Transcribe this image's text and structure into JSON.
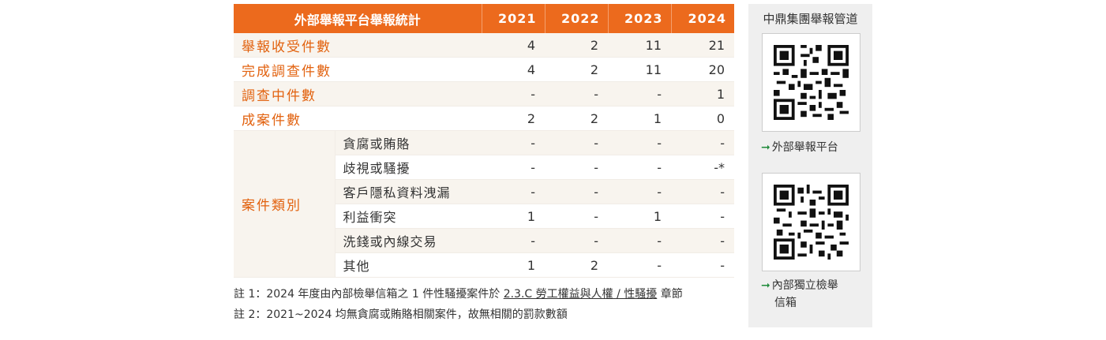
{
  "table": {
    "header_title": "外部舉報平台舉報統計",
    "years": [
      "2021",
      "2022",
      "2023",
      "2024"
    ],
    "rows": [
      {
        "label": "舉報收受件數",
        "values": [
          "4",
          "2",
          "11",
          "21"
        ]
      },
      {
        "label": "完成調查件數",
        "values": [
          "4",
          "2",
          "11",
          "20"
        ]
      },
      {
        "label": "調查中件數",
        "values": [
          "-",
          "-",
          "-",
          "1"
        ]
      },
      {
        "label": "成案件數",
        "values": [
          "2",
          "2",
          "1",
          "0"
        ]
      }
    ],
    "category_label": "案件類別",
    "sub_rows": [
      {
        "label": "貪腐或賄賂",
        "values": [
          "-",
          "-",
          "-",
          "-"
        ]
      },
      {
        "label": "歧視或騷擾",
        "values": [
          "-",
          "-",
          "-",
          "-*"
        ]
      },
      {
        "label": "客戶隱私資料洩漏",
        "values": [
          "-",
          "-",
          "-",
          "-"
        ]
      },
      {
        "label": "利益衝突",
        "values": [
          "1",
          "-",
          "1",
          "-"
        ]
      },
      {
        "label": "洗錢或內線交易",
        "values": [
          "-",
          "-",
          "-",
          "-"
        ]
      },
      {
        "label": "其他",
        "values": [
          "1",
          "2",
          "-",
          "-"
        ]
      }
    ]
  },
  "notes": {
    "note1_prefix": "註 1：2024 年度由內部檢舉信箱之 1 件性騷擾案件於 ",
    "note1_link": "2.3.C 勞工權益與人權 / 性騷擾",
    "note1_suffix": " 章節",
    "note2": "註 2：2021~2024 均無貪腐或賄賂相關案件，故無相關的罰款數額"
  },
  "sidebar": {
    "title": "中鼎集團舉報管道",
    "external_label": "外部舉報平台",
    "internal_label_line1": "內部獨立檢舉",
    "internal_label_line2": "信箱",
    "arrow_icon": "right-arrow-icon",
    "arrow_color": "#1f8a3a"
  },
  "colors": {
    "accent": "#ec6a1d",
    "category_text": "#e2620f",
    "row_shade": "#f8f4ee"
  }
}
